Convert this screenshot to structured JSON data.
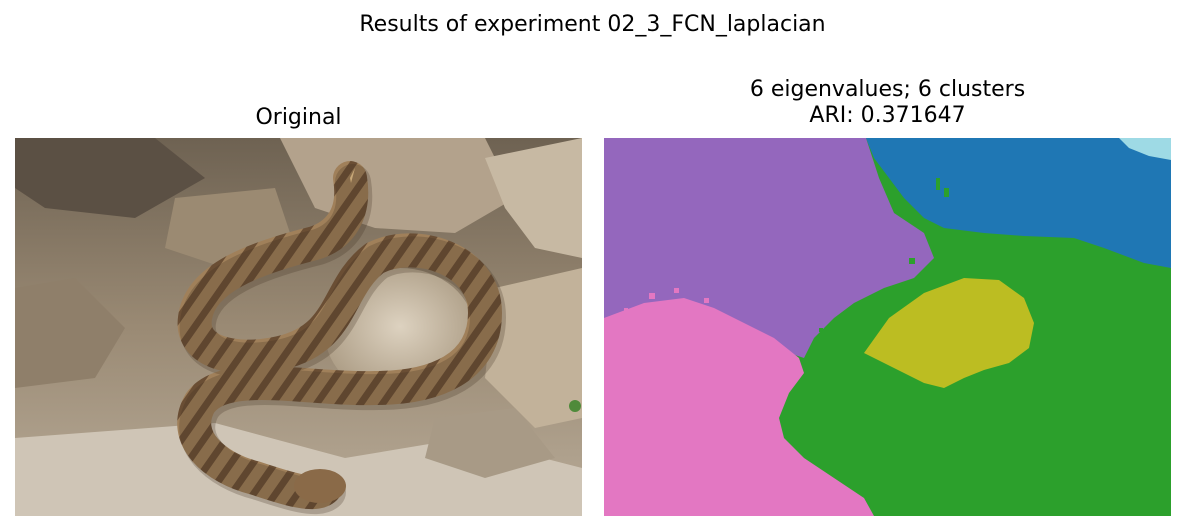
{
  "figure": {
    "suptitle": "Results of experiment 02_3_FCN_laplacian"
  },
  "panels": {
    "original": {
      "title": "Original",
      "image_description": "rattlesnake-on-rocks-photo"
    },
    "segmentation": {
      "title_line1": "6 eigenvalues; 6 clusters",
      "title_line2": "ARI: 0.371647",
      "cluster_colors": {
        "purple": "#9467bd",
        "blue": "#1f77b4",
        "green": "#2ca02c",
        "olive": "#bcbd22",
        "pink": "#e377c2",
        "cyan": "#9edae5"
      }
    }
  }
}
